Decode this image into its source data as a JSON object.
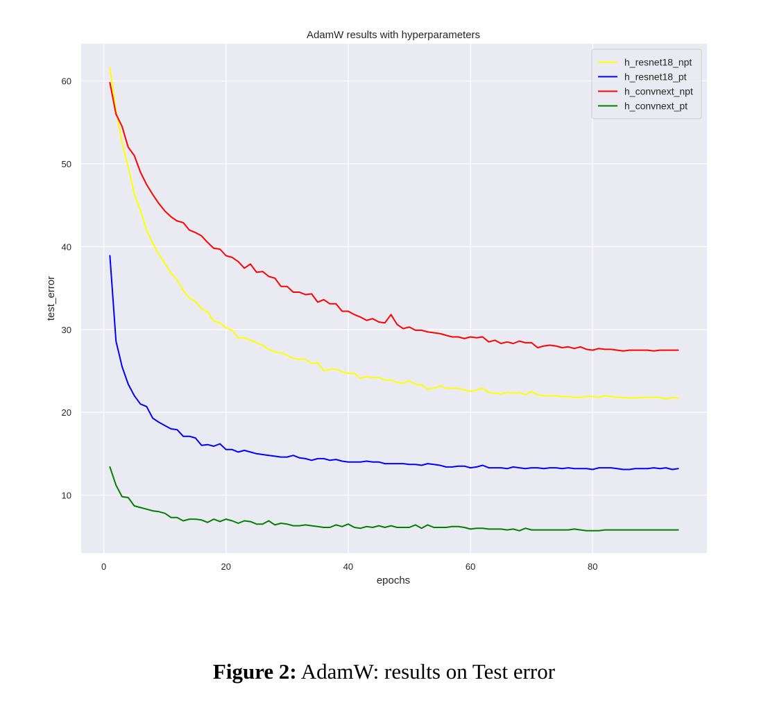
{
  "chart_data": {
    "type": "line",
    "title": "AdamW results with hyperparameters",
    "xlabel": "epochs",
    "ylabel": "test_error",
    "xlim": [
      -3.7,
      98.7
    ],
    "ylim": [
      3.0,
      64.5
    ],
    "xticks": [
      0,
      20,
      40,
      60,
      80
    ],
    "yticks": [
      10,
      20,
      30,
      40,
      50,
      60
    ],
    "grid": true,
    "legend_position": "top-right",
    "background": "#eaeaf2",
    "grid_color": "#ffffff",
    "series": [
      {
        "name": "h_resnet18_npt",
        "color": "#ffff00",
        "x": [
          1,
          2,
          3,
          4,
          5,
          6,
          7,
          8,
          9,
          10,
          11,
          12,
          13,
          14,
          15,
          16,
          17,
          18,
          19,
          20,
          21,
          22,
          23,
          24,
          25,
          26,
          27,
          28,
          29,
          30,
          31,
          32,
          33,
          34,
          35,
          36,
          37,
          38,
          39,
          40,
          41,
          42,
          43,
          44,
          45,
          46,
          47,
          48,
          49,
          50,
          51,
          52,
          53,
          54,
          55,
          56,
          57,
          58,
          59,
          60,
          61,
          62,
          63,
          64,
          65,
          66,
          67,
          68,
          69,
          70,
          71,
          72,
          73,
          74,
          75,
          76,
          77,
          78,
          79,
          80,
          81,
          82,
          83,
          84,
          85,
          86,
          87,
          88,
          89,
          90,
          91,
          92,
          93,
          94
        ],
        "y": [
          61.6,
          56.5,
          52.5,
          49.6,
          46.4,
          44.4,
          42.0,
          40.4,
          39.1,
          38.0,
          36.8,
          36.0,
          34.7,
          33.8,
          33.4,
          32.5,
          32.1,
          31.0,
          30.8,
          30.2,
          29.9,
          29.0,
          29.0,
          28.7,
          28.4,
          28.1,
          27.6,
          27.3,
          27.2,
          26.9,
          26.5,
          26.4,
          26.4,
          25.9,
          26.0,
          25.0,
          25.2,
          25.2,
          24.9,
          24.7,
          24.7,
          24.1,
          24.3,
          24.2,
          24.2,
          23.9,
          23.9,
          23.6,
          23.5,
          23.8,
          23.4,
          23.3,
          22.8,
          22.9,
          23.2,
          22.9,
          22.9,
          22.9,
          22.7,
          22.5,
          22.7,
          22.9,
          22.4,
          22.3,
          22.2,
          22.4,
          22.3,
          22.4,
          22.1,
          22.5,
          22.1,
          22.0,
          22.0,
          22.0,
          21.9,
          21.9,
          21.8,
          21.8,
          21.9,
          21.9,
          21.8,
          22.0,
          21.9,
          21.8,
          21.8,
          21.7,
          21.7,
          21.8,
          21.8,
          21.8,
          21.8,
          21.6,
          21.8,
          21.7
        ]
      },
      {
        "name": "h_resnet18_pt",
        "color": "#0000ff",
        "x": [
          1,
          2,
          3,
          4,
          5,
          6,
          7,
          8,
          9,
          10,
          11,
          12,
          13,
          14,
          15,
          16,
          17,
          18,
          19,
          20,
          21,
          22,
          23,
          24,
          25,
          26,
          27,
          28,
          29,
          30,
          31,
          32,
          33,
          34,
          35,
          36,
          37,
          38,
          39,
          40,
          41,
          42,
          43,
          44,
          45,
          46,
          47,
          48,
          49,
          50,
          51,
          52,
          53,
          54,
          55,
          56,
          57,
          58,
          59,
          60,
          61,
          62,
          63,
          64,
          65,
          66,
          67,
          68,
          69,
          70,
          71,
          72,
          73,
          74,
          75,
          76,
          77,
          78,
          79,
          80,
          81,
          82,
          83,
          84,
          85,
          86,
          87,
          88,
          89,
          90,
          91,
          92,
          93,
          94
        ],
        "y": [
          38.9,
          28.6,
          25.5,
          23.4,
          22.0,
          21.0,
          20.7,
          19.3,
          18.8,
          18.4,
          18.0,
          17.9,
          17.1,
          17.1,
          16.9,
          16.0,
          16.1,
          15.9,
          16.2,
          15.5,
          15.5,
          15.2,
          15.4,
          15.2,
          15.0,
          14.9,
          14.8,
          14.7,
          14.6,
          14.6,
          14.8,
          14.5,
          14.4,
          14.2,
          14.4,
          14.4,
          14.2,
          14.3,
          14.1,
          14.0,
          14.0,
          14.0,
          14.1,
          14.0,
          14.0,
          13.8,
          13.8,
          13.8,
          13.8,
          13.7,
          13.7,
          13.6,
          13.8,
          13.7,
          13.6,
          13.4,
          13.4,
          13.5,
          13.5,
          13.3,
          13.4,
          13.6,
          13.3,
          13.3,
          13.3,
          13.2,
          13.4,
          13.3,
          13.2,
          13.3,
          13.3,
          13.2,
          13.3,
          13.3,
          13.2,
          13.3,
          13.2,
          13.2,
          13.2,
          13.1,
          13.3,
          13.3,
          13.3,
          13.2,
          13.1,
          13.1,
          13.2,
          13.2,
          13.2,
          13.3,
          13.2,
          13.3,
          13.1,
          13.2
        ]
      },
      {
        "name": "h_convnext_npt",
        "color": "#ff0000",
        "x": [
          1,
          2,
          3,
          4,
          5,
          6,
          7,
          8,
          9,
          10,
          11,
          12,
          13,
          14,
          15,
          16,
          17,
          18,
          19,
          20,
          21,
          22,
          23,
          24,
          25,
          26,
          27,
          28,
          29,
          30,
          31,
          32,
          33,
          34,
          35,
          36,
          37,
          38,
          39,
          40,
          41,
          42,
          43,
          44,
          45,
          46,
          47,
          48,
          49,
          50,
          51,
          52,
          53,
          54,
          55,
          56,
          57,
          58,
          59,
          60,
          61,
          62,
          63,
          64,
          65,
          66,
          67,
          68,
          69,
          70,
          71,
          72,
          73,
          74,
          75,
          76,
          77,
          78,
          79,
          80,
          81,
          82,
          83,
          84,
          85,
          86,
          87,
          88,
          89,
          90,
          91,
          92,
          93,
          94
        ],
        "y": [
          59.8,
          56.0,
          54.5,
          52.0,
          51.0,
          49.0,
          47.5,
          46.3,
          45.2,
          44.3,
          43.6,
          43.1,
          42.9,
          42.0,
          41.7,
          41.3,
          40.5,
          39.8,
          39.7,
          38.9,
          38.7,
          38.2,
          37.4,
          37.9,
          36.9,
          37.0,
          36.4,
          36.2,
          35.2,
          35.2,
          34.5,
          34.5,
          34.2,
          34.3,
          33.3,
          33.6,
          33.1,
          33.1,
          32.2,
          32.2,
          31.8,
          31.5,
          31.1,
          31.3,
          30.9,
          30.8,
          31.8,
          30.6,
          30.1,
          30.3,
          29.9,
          29.9,
          29.7,
          29.6,
          29.5,
          29.3,
          29.1,
          29.1,
          28.9,
          29.1,
          29.0,
          29.1,
          28.5,
          28.7,
          28.3,
          28.5,
          28.3,
          28.6,
          28.4,
          28.4,
          27.8,
          28.0,
          28.1,
          28.0,
          27.8,
          27.9,
          27.7,
          27.9,
          27.6,
          27.5,
          27.7,
          27.6,
          27.6,
          27.5,
          27.4,
          27.5,
          27.5,
          27.5,
          27.5,
          27.4,
          27.5,
          27.5,
          27.5,
          27.5
        ]
      },
      {
        "name": "h_convnext_pt",
        "color": "#008000",
        "x": [
          1,
          2,
          3,
          4,
          5,
          6,
          7,
          8,
          9,
          10,
          11,
          12,
          13,
          14,
          15,
          16,
          17,
          18,
          19,
          20,
          21,
          22,
          23,
          24,
          25,
          26,
          27,
          28,
          29,
          30,
          31,
          32,
          33,
          34,
          35,
          36,
          37,
          38,
          39,
          40,
          41,
          42,
          43,
          44,
          45,
          46,
          47,
          48,
          49,
          50,
          51,
          52,
          53,
          54,
          55,
          56,
          57,
          58,
          59,
          60,
          61,
          62,
          63,
          64,
          65,
          66,
          67,
          68,
          69,
          70,
          71,
          72,
          73,
          74,
          75,
          76,
          77,
          78,
          79,
          80,
          81,
          82,
          83,
          84,
          85,
          86,
          87,
          88,
          89,
          90,
          91,
          92,
          93,
          94
        ],
        "y": [
          13.4,
          11.2,
          9.8,
          9.7,
          8.7,
          8.5,
          8.3,
          8.1,
          8.0,
          7.8,
          7.3,
          7.3,
          6.9,
          7.1,
          7.1,
          7.0,
          6.7,
          7.1,
          6.8,
          7.1,
          6.9,
          6.6,
          6.9,
          6.8,
          6.5,
          6.5,
          6.9,
          6.4,
          6.6,
          6.5,
          6.3,
          6.3,
          6.4,
          6.3,
          6.2,
          6.1,
          6.1,
          6.4,
          6.2,
          6.5,
          6.1,
          6.0,
          6.2,
          6.1,
          6.3,
          6.1,
          6.3,
          6.1,
          6.1,
          6.1,
          6.4,
          6.0,
          6.4,
          6.1,
          6.1,
          6.1,
          6.2,
          6.2,
          6.1,
          5.9,
          6.0,
          6.0,
          5.9,
          5.9,
          5.9,
          5.8,
          5.9,
          5.7,
          6.0,
          5.8,
          5.8,
          5.8,
          5.8,
          5.8,
          5.8,
          5.8,
          5.9,
          5.8,
          5.7,
          5.7,
          5.7,
          5.8,
          5.8,
          5.8,
          5.8,
          5.8,
          5.8,
          5.8,
          5.8,
          5.8,
          5.8,
          5.8,
          5.8,
          5.8
        ]
      }
    ]
  },
  "caption": {
    "prefix": "Figure 2:",
    "text": "AdamW: results on Test error"
  }
}
